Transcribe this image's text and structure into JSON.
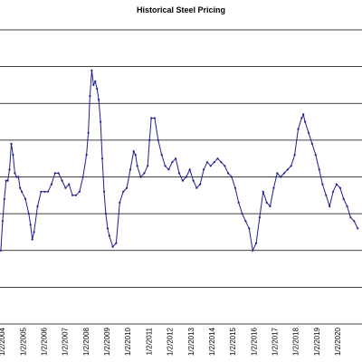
{
  "chart_data": {
    "type": "line",
    "title": "Historical Steel Pricing",
    "xlabel": "",
    "ylabel": "",
    "x_ticks": [
      "1/2/2004",
      "1/2/2005",
      "1/2/2006",
      "1/2/2007",
      "1/2/2008",
      "1/2/2009",
      "1/2/2010",
      "1/2/2011",
      "1/2/2012",
      "1/2/2013",
      "1/2/2014",
      "1/2/2015",
      "1/2/2016",
      "1/2/2017",
      "1/2/2018",
      "1/2/2019",
      "1/2/2020"
    ],
    "xlim": [
      "2003-12-01",
      "2021-03-01"
    ],
    "ylim": [
      0,
      8
    ],
    "grid": "horizontal",
    "legend": "none",
    "line_color": "#1f1f8f",
    "marker": "dot",
    "series": [
      {
        "values": [
          [
            "2003-12-15",
            2.0
          ],
          [
            "2004-01-15",
            2.8
          ],
          [
            "2004-02-15",
            3.4
          ],
          [
            "2004-03-15",
            3.9
          ],
          [
            "2004-04-15",
            3.9
          ],
          [
            "2004-05-15",
            4.2
          ],
          [
            "2004-06-15",
            4.9
          ],
          [
            "2004-07-15",
            4.6
          ],
          [
            "2004-08-15",
            4.1
          ],
          [
            "2004-09-15",
            4.0
          ],
          [
            "2004-10-15",
            4.0
          ],
          [
            "2004-11-15",
            3.7
          ],
          [
            "2004-12-15",
            3.6
          ],
          [
            "2005-02-15",
            3.4
          ],
          [
            "2005-04-15",
            3.0
          ],
          [
            "2005-05-15",
            2.7
          ],
          [
            "2005-06-15",
            2.3
          ],
          [
            "2005-07-15",
            2.5
          ],
          [
            "2005-09-15",
            3.2
          ],
          [
            "2005-11-15",
            3.6
          ],
          [
            "2006-01-15",
            3.6
          ],
          [
            "2006-03-15",
            3.6
          ],
          [
            "2006-05-15",
            3.8
          ],
          [
            "2006-07-15",
            4.1
          ],
          [
            "2006-09-15",
            4.1
          ],
          [
            "2006-11-15",
            3.9
          ],
          [
            "2007-01-15",
            3.7
          ],
          [
            "2007-03-15",
            3.8
          ],
          [
            "2007-05-15",
            3.5
          ],
          [
            "2007-07-15",
            3.5
          ],
          [
            "2007-09-15",
            3.6
          ],
          [
            "2007-11-15",
            4.0
          ],
          [
            "2008-01-15",
            4.6
          ],
          [
            "2008-02-15",
            5.2
          ],
          [
            "2008-03-15",
            6.2
          ],
          [
            "2008-04-15",
            6.9
          ],
          [
            "2008-05-15",
            6.5
          ],
          [
            "2008-06-15",
            6.6
          ],
          [
            "2008-07-15",
            6.4
          ],
          [
            "2008-08-15",
            6.1
          ],
          [
            "2008-09-15",
            5.5
          ],
          [
            "2008-10-15",
            4.5
          ],
          [
            "2008-11-15",
            3.6
          ],
          [
            "2008-12-15",
            3.0
          ],
          [
            "2009-01-15",
            2.6
          ],
          [
            "2009-02-15",
            2.4
          ],
          [
            "2009-04-15",
            2.1
          ],
          [
            "2009-06-15",
            2.2
          ],
          [
            "2009-08-15",
            3.3
          ],
          [
            "2009-10-15",
            3.6
          ],
          [
            "2009-12-15",
            3.7
          ],
          [
            "2010-02-15",
            4.2
          ],
          [
            "2010-04-15",
            4.7
          ],
          [
            "2010-05-15",
            4.6
          ],
          [
            "2010-06-15",
            4.3
          ],
          [
            "2010-08-15",
            4.0
          ],
          [
            "2010-10-15",
            4.1
          ],
          [
            "2010-12-15",
            4.3
          ],
          [
            "2011-01-15",
            5.0
          ],
          [
            "2011-02-15",
            5.6
          ],
          [
            "2011-04-15",
            5.6
          ],
          [
            "2011-06-15",
            5.0
          ],
          [
            "2011-08-15",
            4.6
          ],
          [
            "2011-10-15",
            4.3
          ],
          [
            "2011-12-15",
            4.2
          ],
          [
            "2012-02-15",
            4.4
          ],
          [
            "2012-04-15",
            4.5
          ],
          [
            "2012-06-15",
            4.1
          ],
          [
            "2012-08-15",
            3.9
          ],
          [
            "2012-10-15",
            4.0
          ],
          [
            "2012-12-15",
            4.2
          ],
          [
            "2013-02-15",
            3.9
          ],
          [
            "2013-04-15",
            3.7
          ],
          [
            "2013-06-15",
            3.8
          ],
          [
            "2013-08-15",
            4.2
          ],
          [
            "2013-10-15",
            4.4
          ],
          [
            "2013-12-15",
            4.3
          ],
          [
            "2014-02-15",
            4.4
          ],
          [
            "2014-04-15",
            4.5
          ],
          [
            "2014-06-15",
            4.4
          ],
          [
            "2014-08-15",
            4.3
          ],
          [
            "2014-10-15",
            4.1
          ],
          [
            "2014-12-15",
            4.0
          ],
          [
            "2015-02-15",
            3.7
          ],
          [
            "2015-04-15",
            3.3
          ],
          [
            "2015-06-15",
            3.0
          ],
          [
            "2015-08-15",
            2.8
          ],
          [
            "2015-10-15",
            2.6
          ],
          [
            "2015-12-15",
            2.0
          ],
          [
            "2016-02-15",
            2.2
          ],
          [
            "2016-04-15",
            2.9
          ],
          [
            "2016-06-15",
            3.6
          ],
          [
            "2016-08-15",
            3.3
          ],
          [
            "2016-10-15",
            3.2
          ],
          [
            "2016-12-15",
            3.7
          ],
          [
            "2017-02-15",
            4.1
          ],
          [
            "2017-04-15",
            4.0
          ],
          [
            "2017-06-15",
            4.1
          ],
          [
            "2017-08-15",
            4.2
          ],
          [
            "2017-10-15",
            4.3
          ],
          [
            "2017-12-15",
            4.6
          ],
          [
            "2018-02-15",
            5.3
          ],
          [
            "2018-04-15",
            5.6
          ],
          [
            "2018-05-15",
            5.7
          ],
          [
            "2018-06-15",
            5.5
          ],
          [
            "2018-08-15",
            5.2
          ],
          [
            "2018-10-15",
            4.9
          ],
          [
            "2018-12-15",
            4.6
          ],
          [
            "2019-02-15",
            4.2
          ],
          [
            "2019-04-15",
            3.8
          ],
          [
            "2019-06-15",
            3.5
          ],
          [
            "2019-08-15",
            3.2
          ],
          [
            "2019-10-15",
            3.6
          ],
          [
            "2019-12-15",
            3.8
          ],
          [
            "2020-02-15",
            3.7
          ],
          [
            "2020-04-15",
            3.4
          ],
          [
            "2020-06-15",
            3.2
          ],
          [
            "2020-08-15",
            2.9
          ],
          [
            "2020-10-15",
            2.8
          ],
          [
            "2020-12-15",
            2.6
          ]
        ]
      }
    ]
  }
}
